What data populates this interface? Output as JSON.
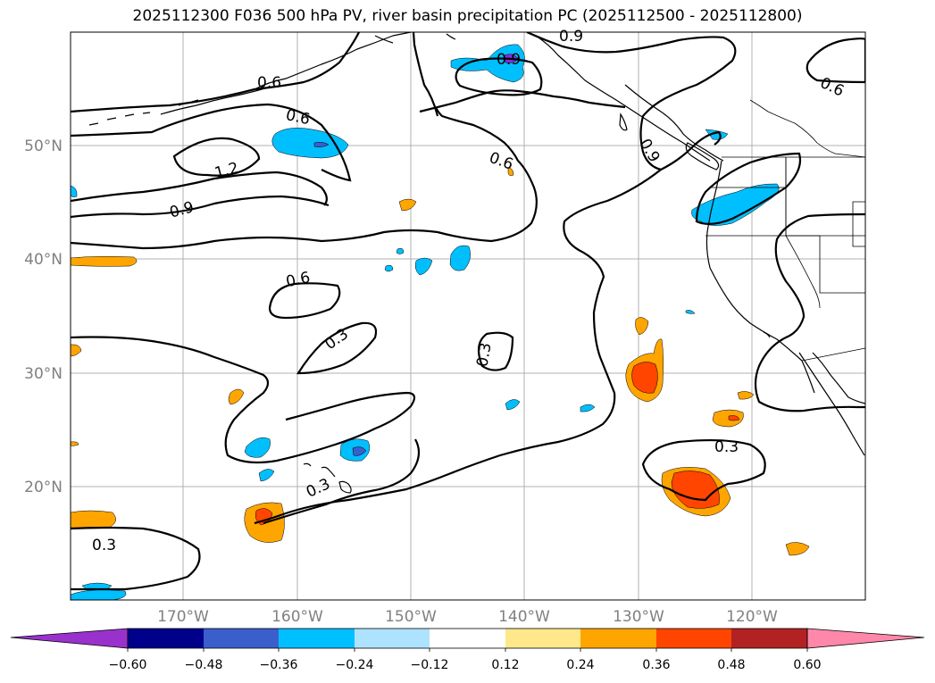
{
  "title": "2025112300 F036 500 hPa PV, river basin precipitation PC (2025112500 - 2025112800)",
  "map": {
    "latitude_labels": [
      "50°N",
      "40°N",
      "30°N",
      "20°N"
    ],
    "longitude_labels": [
      "170°W",
      "160°W",
      "150°W",
      "140°W",
      "130°W",
      "120°W"
    ],
    "contour_labels": [
      "0.6",
      "0.6",
      "0.6",
      "0.9",
      "1.2",
      "0.9",
      "0.6",
      "0.9",
      "0.6",
      "0.3",
      "0.3",
      "0.3",
      "0.3",
      "0.3",
      "0.9"
    ],
    "colors": {
      "neg_light": "#00bfff",
      "neg_mid": "#3a5fcd",
      "neg_dark": "#8a2be2",
      "pos_light": "#ffa500",
      "pos_dark": "#ff4500",
      "coast": "#000000",
      "contour": "#000000",
      "grid": "#b0b0b0"
    }
  },
  "colorbar": {
    "tick_labels": [
      "−0.60",
      "−0.48",
      "−0.36",
      "−0.24",
      "−0.12",
      "0.12",
      "0.24",
      "0.36",
      "0.48",
      "0.60"
    ],
    "colors": [
      "#9932cc",
      "#00008b",
      "#3a5fcd",
      "#00bfff",
      "#aee3ff",
      "#ffffff",
      "#ffe88a",
      "#ffa500",
      "#ff4500",
      "#b22222",
      "#ff88aa"
    ]
  }
}
